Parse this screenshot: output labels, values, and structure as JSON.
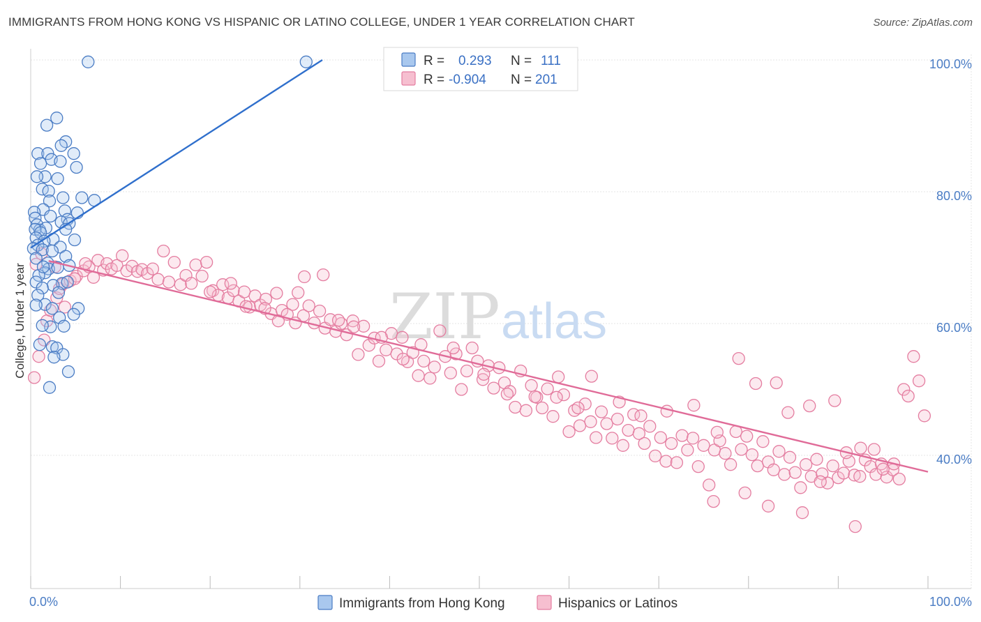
{
  "title": "IMMIGRANTS FROM HONG KONG VS HISPANIC OR LATINO COLLEGE, UNDER 1 YEAR CORRELATION CHART",
  "source": "Source: ZipAtlas.com",
  "watermark": {
    "zip": "ZIP",
    "atlas": "atlas"
  },
  "colors": {
    "blue": "#4a7cc4",
    "blue_fill": "#a9c8ee",
    "blue_line": "#2f6fcc",
    "pink": "#e47da0",
    "pink_fill": "#f6bfd0",
    "pink_line": "#e06b98",
    "grid": "#e6e6e6"
  },
  "legend_top": {
    "rows": [
      {
        "r_label": "R =",
        "r_value": "0.293",
        "n_label": "N =",
        "n_value": "111",
        "series": "blue"
      },
      {
        "r_label": "R =",
        "r_value": "-0.904",
        "n_label": "N =",
        "n_value": "201",
        "series": "pink"
      }
    ]
  },
  "chart_data": {
    "type": "scatter",
    "title": "IMMIGRANTS FROM HONG KONG VS HISPANIC OR LATINO COLLEGE, UNDER 1 YEAR CORRELATION CHART",
    "xlabel": "",
    "ylabel": "College, Under 1 year",
    "xlim": [
      0,
      100
    ],
    "ylim": [
      20,
      100
    ],
    "x_tick_labels": [
      "0.0%",
      "100.0%"
    ],
    "y_ticks": [
      40,
      60,
      80,
      100
    ],
    "y_tick_labels": [
      "40.0%",
      "60.0%",
      "80.0%",
      "100.0%"
    ],
    "grid": true,
    "legend_position": "bottom",
    "series": [
      {
        "name": "Immigrants from Hong Kong",
        "color": "blue",
        "trend": {
          "x": [
            0,
            32.5
          ],
          "y": [
            71.5,
            100
          ]
        },
        "points": [
          [
            6.4,
            99.7
          ],
          [
            30.7,
            99.7
          ],
          [
            2.9,
            91.2
          ],
          [
            1.8,
            90.1
          ],
          [
            3.9,
            87.6
          ],
          [
            3.4,
            87.0
          ],
          [
            0.8,
            85.8
          ],
          [
            1.9,
            85.8
          ],
          [
            4.8,
            85.8
          ],
          [
            2.3,
            84.9
          ],
          [
            1.1,
            84.3
          ],
          [
            3.3,
            84.6
          ],
          [
            5.1,
            83.7
          ],
          [
            1.6,
            82.3
          ],
          [
            0.7,
            82.3
          ],
          [
            3.0,
            82.0
          ],
          [
            1.3,
            80.4
          ],
          [
            2.0,
            80.1
          ],
          [
            3.6,
            79.1
          ],
          [
            5.7,
            79.1
          ],
          [
            2.1,
            78.6
          ],
          [
            7.1,
            78.7
          ],
          [
            1.4,
            77.3
          ],
          [
            3.8,
            77.1
          ],
          [
            0.4,
            76.9
          ],
          [
            5.2,
            76.8
          ],
          [
            0.5,
            76.0
          ],
          [
            2.2,
            76.3
          ],
          [
            4.1,
            75.8
          ],
          [
            3.4,
            75.4
          ],
          [
            4.3,
            75.2
          ],
          [
            0.7,
            75.0
          ],
          [
            1.0,
            74.2
          ],
          [
            1.7,
            74.5
          ],
          [
            3.9,
            74.3
          ],
          [
            0.5,
            74.3
          ],
          [
            1.1,
            73.8
          ],
          [
            0.6,
            73.0
          ],
          [
            2.5,
            72.8
          ],
          [
            4.9,
            72.7
          ],
          [
            1.5,
            72.5
          ],
          [
            0.8,
            71.9
          ],
          [
            3.3,
            71.6
          ],
          [
            0.3,
            71.4
          ],
          [
            1.3,
            71.2
          ],
          [
            2.4,
            71.0
          ],
          [
            3.9,
            70.2
          ],
          [
            0.6,
            69.9
          ],
          [
            1.9,
            69.2
          ],
          [
            4.3,
            68.8
          ],
          [
            2.0,
            68.3
          ],
          [
            1.6,
            67.7
          ],
          [
            0.9,
            67.3
          ],
          [
            3.5,
            66.1
          ],
          [
            0.6,
            66.3
          ],
          [
            2.5,
            65.8
          ],
          [
            1.3,
            65.4
          ],
          [
            3.1,
            64.7
          ],
          [
            0.8,
            64.3
          ],
          [
            1.6,
            62.9
          ],
          [
            5.3,
            62.3
          ],
          [
            2.4,
            62.3
          ],
          [
            0.6,
            62.8
          ],
          [
            3.2,
            60.9
          ],
          [
            4.8,
            61.4
          ],
          [
            2.2,
            59.5
          ],
          [
            3.7,
            59.6
          ],
          [
            1.3,
            59.7
          ],
          [
            1.0,
            56.8
          ],
          [
            2.4,
            56.5
          ],
          [
            2.9,
            56.3
          ],
          [
            3.6,
            55.3
          ],
          [
            2.6,
            54.9
          ],
          [
            4.2,
            52.7
          ],
          [
            2.1,
            50.3
          ],
          [
            3.0,
            68.5
          ],
          [
            4.1,
            66.3
          ],
          [
            1.4,
            68.6
          ]
        ]
      },
      {
        "name": "Hispanics or Latinos",
        "color": "pink",
        "trend": {
          "x": [
            2.0,
            100
          ],
          "y": [
            69.5,
            37.5
          ]
        },
        "points": [
          [
            0.4,
            51.8
          ],
          [
            0.9,
            55.0
          ],
          [
            1.5,
            57.5
          ],
          [
            1.8,
            60.4
          ],
          [
            2.2,
            62.0
          ],
          [
            2.9,
            63.9
          ],
          [
            3.2,
            65.3
          ],
          [
            3.6,
            66.0
          ],
          [
            4.4,
            66.5
          ],
          [
            5.1,
            67.2
          ],
          [
            5.9,
            68.0
          ],
          [
            6.5,
            68.6
          ],
          [
            7.0,
            67.0
          ],
          [
            7.5,
            69.6
          ],
          [
            8.1,
            68.1
          ],
          [
            8.5,
            69.1
          ],
          [
            9.0,
            68.3
          ],
          [
            9.6,
            68.8
          ],
          [
            10.2,
            70.3
          ],
          [
            10.7,
            68.0
          ],
          [
            11.3,
            68.7
          ],
          [
            11.9,
            67.9
          ],
          [
            12.4,
            68.2
          ],
          [
            13.0,
            67.6
          ],
          [
            13.6,
            68.3
          ],
          [
            14.2,
            66.7
          ],
          [
            14.8,
            71.0
          ],
          [
            15.4,
            66.3
          ],
          [
            16.0,
            69.3
          ],
          [
            16.7,
            65.9
          ],
          [
            17.3,
            67.3
          ],
          [
            17.9,
            66.1
          ],
          [
            18.4,
            68.9
          ],
          [
            19.1,
            67.2
          ],
          [
            19.6,
            69.3
          ],
          [
            20.3,
            65.0
          ],
          [
            20.9,
            64.3
          ],
          [
            21.4,
            65.9
          ],
          [
            22.0,
            63.9
          ],
          [
            22.6,
            65.0
          ],
          [
            23.2,
            63.4
          ],
          [
            23.8,
            64.8
          ],
          [
            24.4,
            62.5
          ],
          [
            25.0,
            64.2
          ],
          [
            25.6,
            62.8
          ],
          [
            26.2,
            63.7
          ],
          [
            26.8,
            61.5
          ],
          [
            27.4,
            64.6
          ],
          [
            28.0,
            62.0
          ],
          [
            28.6,
            61.4
          ],
          [
            29.2,
            62.9
          ],
          [
            29.8,
            64.7
          ],
          [
            30.4,
            61.2
          ],
          [
            31.0,
            62.7
          ],
          [
            31.6,
            60.1
          ],
          [
            32.2,
            61.9
          ],
          [
            32.8,
            59.3
          ],
          [
            33.4,
            60.6
          ],
          [
            34.0,
            58.8
          ],
          [
            34.6,
            60.0
          ],
          [
            35.2,
            58.3
          ],
          [
            35.9,
            60.4
          ],
          [
            36.5,
            55.3
          ],
          [
            37.1,
            59.6
          ],
          [
            37.7,
            56.7
          ],
          [
            38.3,
            57.8
          ],
          [
            38.8,
            54.3
          ],
          [
            39.6,
            56.0
          ],
          [
            40.2,
            58.5
          ],
          [
            40.8,
            55.4
          ],
          [
            41.4,
            57.9
          ],
          [
            42.0,
            54.2
          ],
          [
            42.6,
            55.6
          ],
          [
            43.2,
            52.1
          ],
          [
            43.8,
            54.3
          ],
          [
            44.5,
            51.7
          ],
          [
            45.0,
            53.4
          ],
          [
            45.6,
            58.9
          ],
          [
            46.2,
            55.0
          ],
          [
            46.8,
            52.5
          ],
          [
            47.4,
            55.4
          ],
          [
            48.0,
            50.0
          ],
          [
            48.6,
            52.8
          ],
          [
            49.2,
            56.3
          ],
          [
            49.8,
            54.3
          ],
          [
            50.4,
            51.5
          ],
          [
            51.0,
            53.6
          ],
          [
            51.6,
            50.2
          ],
          [
            52.2,
            53.3
          ],
          [
            52.8,
            51.0
          ],
          [
            53.4,
            49.7
          ],
          [
            54.0,
            47.3
          ],
          [
            54.6,
            52.8
          ],
          [
            55.2,
            46.8
          ],
          [
            55.8,
            50.6
          ],
          [
            56.4,
            48.8
          ],
          [
            57.0,
            47.2
          ],
          [
            57.6,
            50.1
          ],
          [
            58.2,
            45.9
          ],
          [
            58.8,
            51.9
          ],
          [
            59.4,
            49.2
          ],
          [
            60.0,
            43.6
          ],
          [
            60.6,
            46.8
          ],
          [
            61.2,
            44.5
          ],
          [
            61.8,
            47.8
          ],
          [
            62.4,
            45.1
          ],
          [
            63.0,
            42.7
          ],
          [
            63.6,
            46.6
          ],
          [
            64.2,
            44.8
          ],
          [
            64.8,
            42.6
          ],
          [
            65.4,
            45.5
          ],
          [
            66.0,
            41.5
          ],
          [
            66.6,
            43.8
          ],
          [
            67.2,
            46.2
          ],
          [
            67.8,
            43.3
          ],
          [
            68.4,
            41.8
          ],
          [
            69.0,
            44.4
          ],
          [
            69.6,
            39.9
          ],
          [
            70.2,
            42.7
          ],
          [
            70.8,
            39.1
          ],
          [
            71.4,
            41.8
          ],
          [
            72.0,
            38.9
          ],
          [
            72.6,
            43.0
          ],
          [
            73.2,
            40.8
          ],
          [
            73.8,
            42.6
          ],
          [
            74.4,
            38.3
          ],
          [
            75.0,
            41.5
          ],
          [
            75.6,
            35.5
          ],
          [
            76.2,
            40.8
          ],
          [
            76.8,
            42.2
          ],
          [
            77.4,
            40.3
          ],
          [
            78.0,
            38.6
          ],
          [
            78.6,
            43.6
          ],
          [
            79.2,
            40.9
          ],
          [
            79.8,
            42.9
          ],
          [
            80.4,
            40.1
          ],
          [
            81.0,
            38.4
          ],
          [
            81.6,
            42.1
          ],
          [
            82.2,
            39.0
          ],
          [
            82.8,
            37.8
          ],
          [
            83.4,
            40.6
          ],
          [
            84.0,
            37.1
          ],
          [
            84.6,
            39.7
          ],
          [
            85.2,
            37.4
          ],
          [
            85.8,
            35.1
          ],
          [
            86.4,
            38.6
          ],
          [
            87.0,
            36.8
          ],
          [
            87.6,
            39.4
          ],
          [
            88.2,
            37.2
          ],
          [
            88.8,
            35.8
          ],
          [
            89.4,
            38.4
          ],
          [
            90.0,
            36.6
          ],
          [
            90.6,
            37.3
          ],
          [
            91.2,
            39.1
          ],
          [
            91.8,
            37.0
          ],
          [
            92.4,
            36.8
          ],
          [
            93.0,
            39.3
          ],
          [
            93.6,
            38.3
          ],
          [
            94.2,
            37.1
          ],
          [
            94.8,
            38.7
          ],
          [
            95.4,
            36.7
          ],
          [
            96.1,
            37.8
          ],
          [
            96.8,
            36.4
          ],
          [
            97.3,
            50.0
          ],
          [
            97.8,
            49.0
          ],
          [
            98.4,
            55.0
          ],
          [
            99.0,
            51.3
          ],
          [
            99.6,
            46.0
          ],
          [
            20.0,
            64.8
          ],
          [
            22.3,
            66.1
          ],
          [
            24.0,
            62.6
          ],
          [
            26.1,
            62.3
          ],
          [
            27.6,
            60.4
          ],
          [
            29.5,
            60.1
          ],
          [
            30.5,
            67.1
          ],
          [
            32.6,
            67.4
          ],
          [
            34.3,
            60.5
          ],
          [
            36.0,
            59.5
          ],
          [
            39.1,
            57.9
          ],
          [
            41.5,
            54.6
          ],
          [
            43.5,
            56.8
          ],
          [
            47.1,
            56.3
          ],
          [
            50.5,
            52.3
          ],
          [
            53.1,
            49.3
          ],
          [
            56.2,
            48.9
          ],
          [
            58.6,
            48.8
          ],
          [
            61.0,
            47.2
          ],
          [
            62.5,
            52.0
          ],
          [
            65.6,
            48.1
          ],
          [
            68.0,
            46.0
          ],
          [
            70.9,
            46.7
          ],
          [
            73.9,
            47.6
          ],
          [
            76.5,
            43.5
          ],
          [
            78.9,
            54.7
          ],
          [
            80.8,
            50.9
          ],
          [
            83.1,
            51.0
          ],
          [
            84.4,
            46.5
          ],
          [
            86.8,
            47.5
          ],
          [
            88.0,
            36.0
          ],
          [
            89.6,
            48.3
          ],
          [
            90.9,
            40.4
          ],
          [
            92.5,
            41.1
          ],
          [
            94.0,
            40.9
          ],
          [
            95.0,
            37.9
          ],
          [
            96.2,
            38.7
          ],
          [
            76.1,
            33.0
          ],
          [
            82.2,
            32.3
          ],
          [
            86.0,
            31.3
          ],
          [
            91.9,
            29.2
          ],
          [
            79.6,
            34.3
          ],
          [
            2.7,
            68.6
          ],
          [
            4.9,
            66.8
          ],
          [
            6.1,
            69.1
          ],
          [
            1.2,
            70.6
          ],
          [
            0.6,
            69.0
          ],
          [
            3.8,
            62.5
          ]
        ]
      }
    ]
  },
  "bottom_legend": [
    {
      "label": "Immigrants from Hong Kong",
      "series": "blue"
    },
    {
      "label": "Hispanics or Latinos",
      "series": "pink"
    }
  ]
}
